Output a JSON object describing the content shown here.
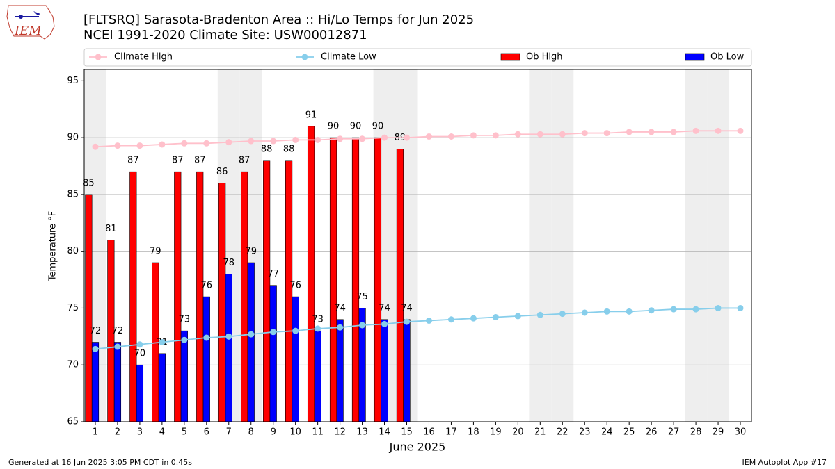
{
  "logo": "IEM",
  "footer": {
    "left": "Generated at 16 Jun 2025 3:05 PM CDT in 0.45s",
    "right": "IEM Autoplot App #17"
  },
  "chart_data": {
    "type": "bar",
    "title": "[FLTSRQ] Sarasota-Bradenton Area :: Hi/Lo Temps for Jun 2025",
    "subtitle": "NCEI 1991-2020 Climate Site: USW00012871",
    "x_label": "June 2025",
    "y_label": "Temperature °F",
    "x": [
      1,
      2,
      3,
      4,
      5,
      6,
      7,
      8,
      9,
      10,
      11,
      12,
      13,
      14,
      15,
      16,
      17,
      18,
      19,
      20,
      21,
      22,
      23,
      24,
      25,
      26,
      27,
      28,
      29,
      30
    ],
    "xlim": [
      0.5,
      30.5
    ],
    "xticks": [
      1,
      2,
      3,
      4,
      5,
      6,
      7,
      8,
      9,
      10,
      11,
      12,
      13,
      14,
      15,
      16,
      17,
      18,
      19,
      20,
      21,
      22,
      23,
      24,
      25,
      26,
      27,
      28,
      29,
      30
    ],
    "ylim": [
      65,
      96
    ],
    "yticks": [
      65,
      70,
      75,
      80,
      85,
      90,
      95
    ],
    "grid": true,
    "shaded_days": [
      1,
      7,
      8,
      14,
      15,
      21,
      22,
      28,
      29
    ],
    "series": [
      {
        "name": "Climate High",
        "kind": "line",
        "color": "#ffc0cb",
        "values": [
          89.2,
          89.3,
          89.3,
          89.4,
          89.5,
          89.5,
          89.6,
          89.7,
          89.7,
          89.8,
          89.8,
          89.9,
          89.9,
          90.0,
          90.0,
          90.1,
          90.1,
          90.2,
          90.2,
          90.3,
          90.3,
          90.3,
          90.4,
          90.4,
          90.5,
          90.5,
          90.5,
          90.6,
          90.6,
          90.6
        ]
      },
      {
        "name": "Climate Low",
        "kind": "line",
        "color": "#87ceeb",
        "values": [
          71.4,
          71.6,
          71.8,
          72.0,
          72.2,
          72.4,
          72.5,
          72.7,
          72.9,
          73.0,
          73.2,
          73.3,
          73.5,
          73.6,
          73.8,
          73.9,
          74.0,
          74.1,
          74.2,
          74.3,
          74.4,
          74.5,
          74.6,
          74.7,
          74.7,
          74.8,
          74.9,
          74.9,
          75.0,
          75.0
        ]
      },
      {
        "name": "Ob High",
        "kind": "bar",
        "color": "#ff0000",
        "values": [
          85,
          81,
          87,
          79,
          87,
          87,
          86,
          87,
          88,
          88,
          91,
          90,
          90,
          90,
          89,
          null,
          null,
          null,
          null,
          null,
          null,
          null,
          null,
          null,
          null,
          null,
          null,
          null,
          null,
          null
        ]
      },
      {
        "name": "Ob Low",
        "kind": "bar",
        "color": "#0000ff",
        "values": [
          72,
          72,
          70,
          71,
          73,
          76,
          78,
          79,
          77,
          76,
          73,
          74,
          75,
          74,
          74,
          null,
          null,
          null,
          null,
          null,
          null,
          null,
          null,
          null,
          null,
          null,
          null,
          null,
          null,
          null
        ]
      }
    ]
  }
}
